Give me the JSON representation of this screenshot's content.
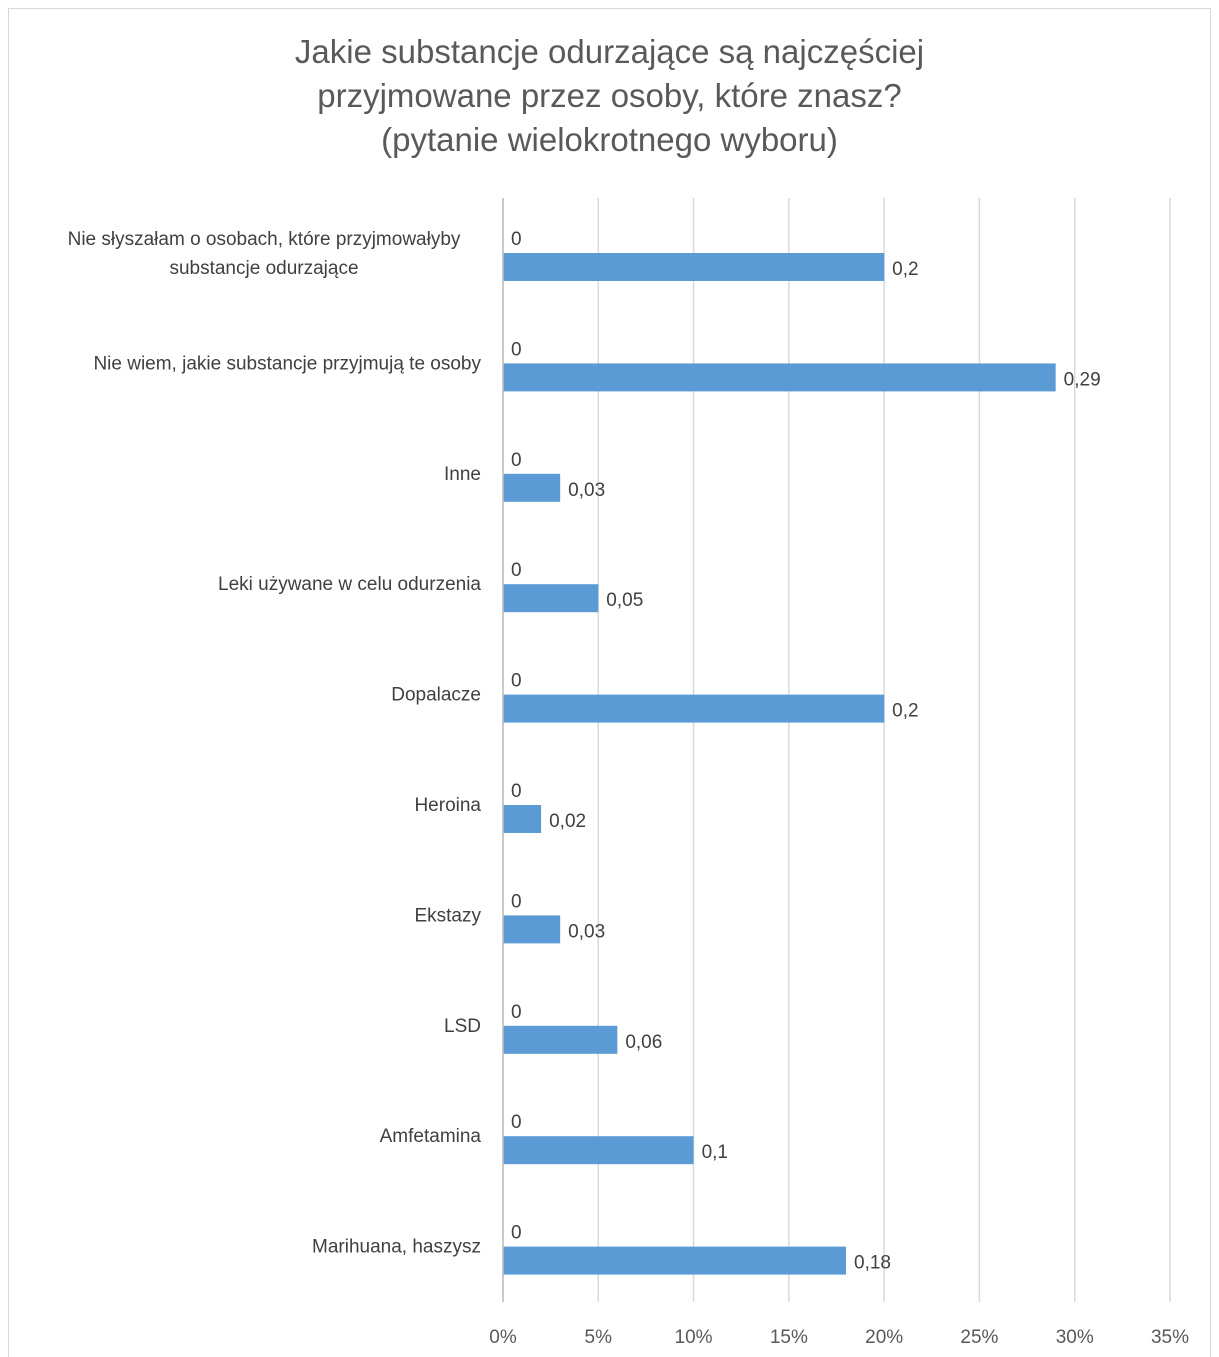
{
  "chart_data": {
    "type": "bar",
    "orientation": "horizontal",
    "title": "Jakie substancje odurzające są najczęściej przyjmowane przez osoby, które znasz? (pytanie wielokrotnego wyboru)",
    "title_lines": [
      "Jakie substancje odurzające są najczęściej",
      "przyjmowane przez osoby, które znasz?",
      "(pytanie wielokrotnego wyboru)"
    ],
    "categories": [
      "Nie słyszałam o osobach, które przyjmowałyby substancje odurzające",
      "Nie wiem, jakie substancje przyjmują te osoby",
      "Inne",
      "Leki używane w celu odurzenia",
      "Dopalacze",
      "Heroina",
      "Ekstazy",
      "LSD",
      "Amfetamina",
      "Marihuana, haszysz"
    ],
    "category_lines": [
      [
        "Nie słyszałam o osobach, które przyjmowałyby",
        "substancje odurzające"
      ],
      [
        "Nie wiem, jakie substancje przyjmują te osoby"
      ],
      [
        "Inne"
      ],
      [
        "Leki używane w celu odurzenia"
      ],
      [
        "Dopalacze"
      ],
      [
        "Heroina"
      ],
      [
        "Ekstazy"
      ],
      [
        "LSD"
      ],
      [
        "Amfetamina"
      ],
      [
        "Marihuana, haszysz"
      ]
    ],
    "series": [
      {
        "values": [
          0,
          0,
          0,
          0,
          0,
          0,
          0,
          0,
          0,
          0
        ],
        "labels": [
          "0",
          "0",
          "0",
          "0",
          "0",
          "0",
          "0",
          "0",
          "0",
          "0"
        ],
        "color": "#5b9bd5"
      },
      {
        "values": [
          0.2,
          0.29,
          0.03,
          0.05,
          0.2,
          0.02,
          0.03,
          0.06,
          0.1,
          0.18
        ],
        "labels": [
          "0,2",
          "0,29",
          "0,03",
          "0,05",
          "0,2",
          "0,02",
          "0,03",
          "0,06",
          "0,1",
          "0,18"
        ],
        "color": "#5b9bd5"
      }
    ],
    "xlim": [
      0,
      0.35
    ],
    "xticks": [
      0,
      0.05,
      0.1,
      0.15,
      0.2,
      0.25,
      0.3,
      0.35
    ],
    "xtick_labels": [
      "0%",
      "5%",
      "10%",
      "15%",
      "20%",
      "25%",
      "30%",
      "35%"
    ],
    "grid": true,
    "legend": "none",
    "gridline_color": "#d9d9d9",
    "text_color": "#404040"
  }
}
